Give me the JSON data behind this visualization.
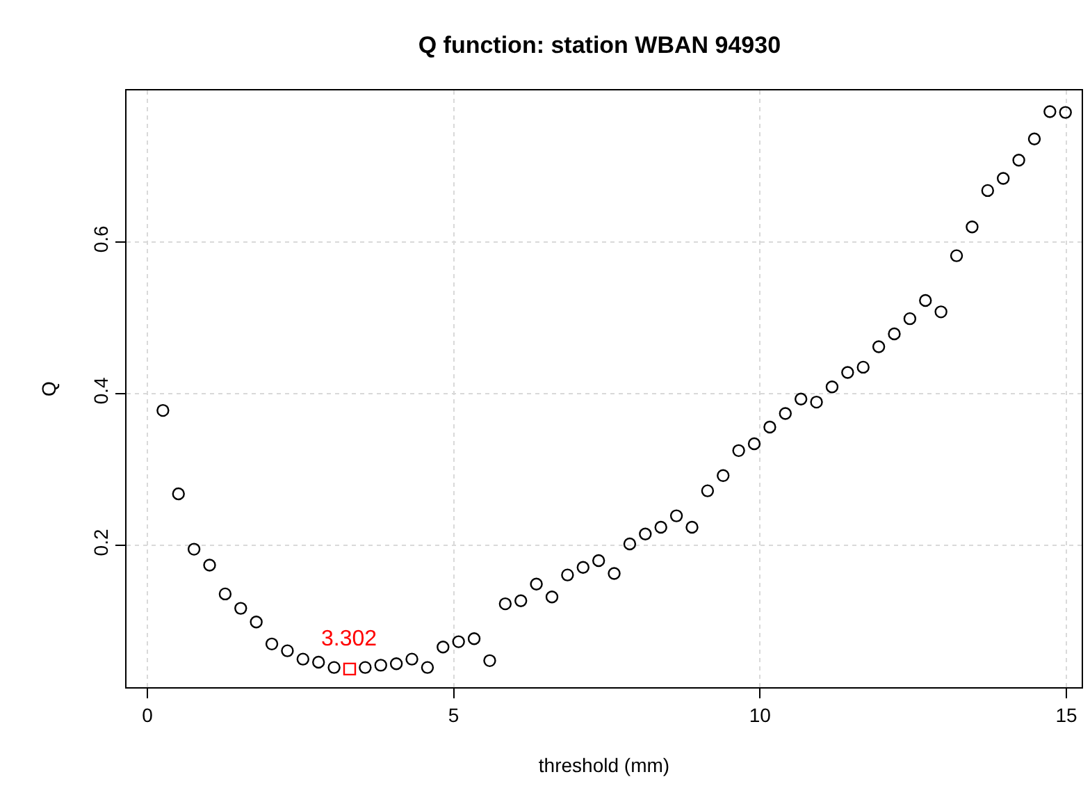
{
  "chart_data": {
    "type": "scatter",
    "title": "Q function: station WBAN 94930",
    "xlabel": "threshold (mm)",
    "ylabel": "Q",
    "series": [
      {
        "color": "#000000",
        "marker": "circle",
        "x": [
          0.254,
          0.508,
          0.762,
          1.016,
          1.27,
          1.524,
          1.778,
          2.032,
          2.286,
          2.54,
          2.794,
          3.048,
          3.302,
          3.556,
          3.81,
          4.064,
          4.318,
          4.572,
          4.826,
          5.08,
          5.334,
          5.588,
          5.842,
          6.096,
          6.35,
          6.604,
          6.858,
          7.112,
          7.366,
          7.62,
          7.874,
          8.128,
          8.382,
          8.636,
          8.89,
          9.144,
          9.398,
          9.652,
          9.906,
          10.16,
          10.414,
          10.668,
          10.922,
          11.176,
          11.43,
          11.684,
          11.938,
          12.192,
          12.446,
          12.7,
          12.954,
          13.208,
          13.462,
          13.716,
          13.97,
          14.224,
          14.478,
          14.732,
          14.986
        ],
        "values": [
          0.378,
          0.268,
          0.195,
          0.174,
          0.136,
          0.117,
          0.099,
          0.07,
          0.061,
          0.05,
          0.046,
          0.039,
          null,
          0.039,
          0.042,
          0.044,
          0.05,
          0.039,
          0.066,
          0.073,
          0.077,
          0.048,
          0.123,
          0.127,
          0.149,
          0.132,
          0.161,
          0.171,
          0.18,
          0.163,
          0.202,
          0.215,
          0.224,
          0.239,
          0.224,
          0.272,
          0.292,
          0.325,
          0.334,
          0.356,
          0.374,
          0.393,
          0.389,
          0.409,
          0.428,
          0.435,
          0.462,
          0.479,
          0.499,
          0.523,
          0.508,
          0.582,
          0.62,
          0.668,
          0.684,
          0.708,
          0.736,
          0.772,
          0.771
        ]
      },
      {
        "color": "#ff0000",
        "marker": "square",
        "x": [
          3.302
        ],
        "values": [
          0.037
        ]
      }
    ],
    "annotations": [
      {
        "text": "3.302",
        "x": 3.302,
        "y": 0.037
      }
    ],
    "xlim": [
      -0.34,
      15.25
    ],
    "ylim": [
      0.013,
      0.8
    ],
    "xticks": [
      0,
      5,
      10,
      15
    ],
    "yticks": [
      0.2,
      0.4,
      0.6
    ],
    "grid": true,
    "line_style": "dotted"
  }
}
